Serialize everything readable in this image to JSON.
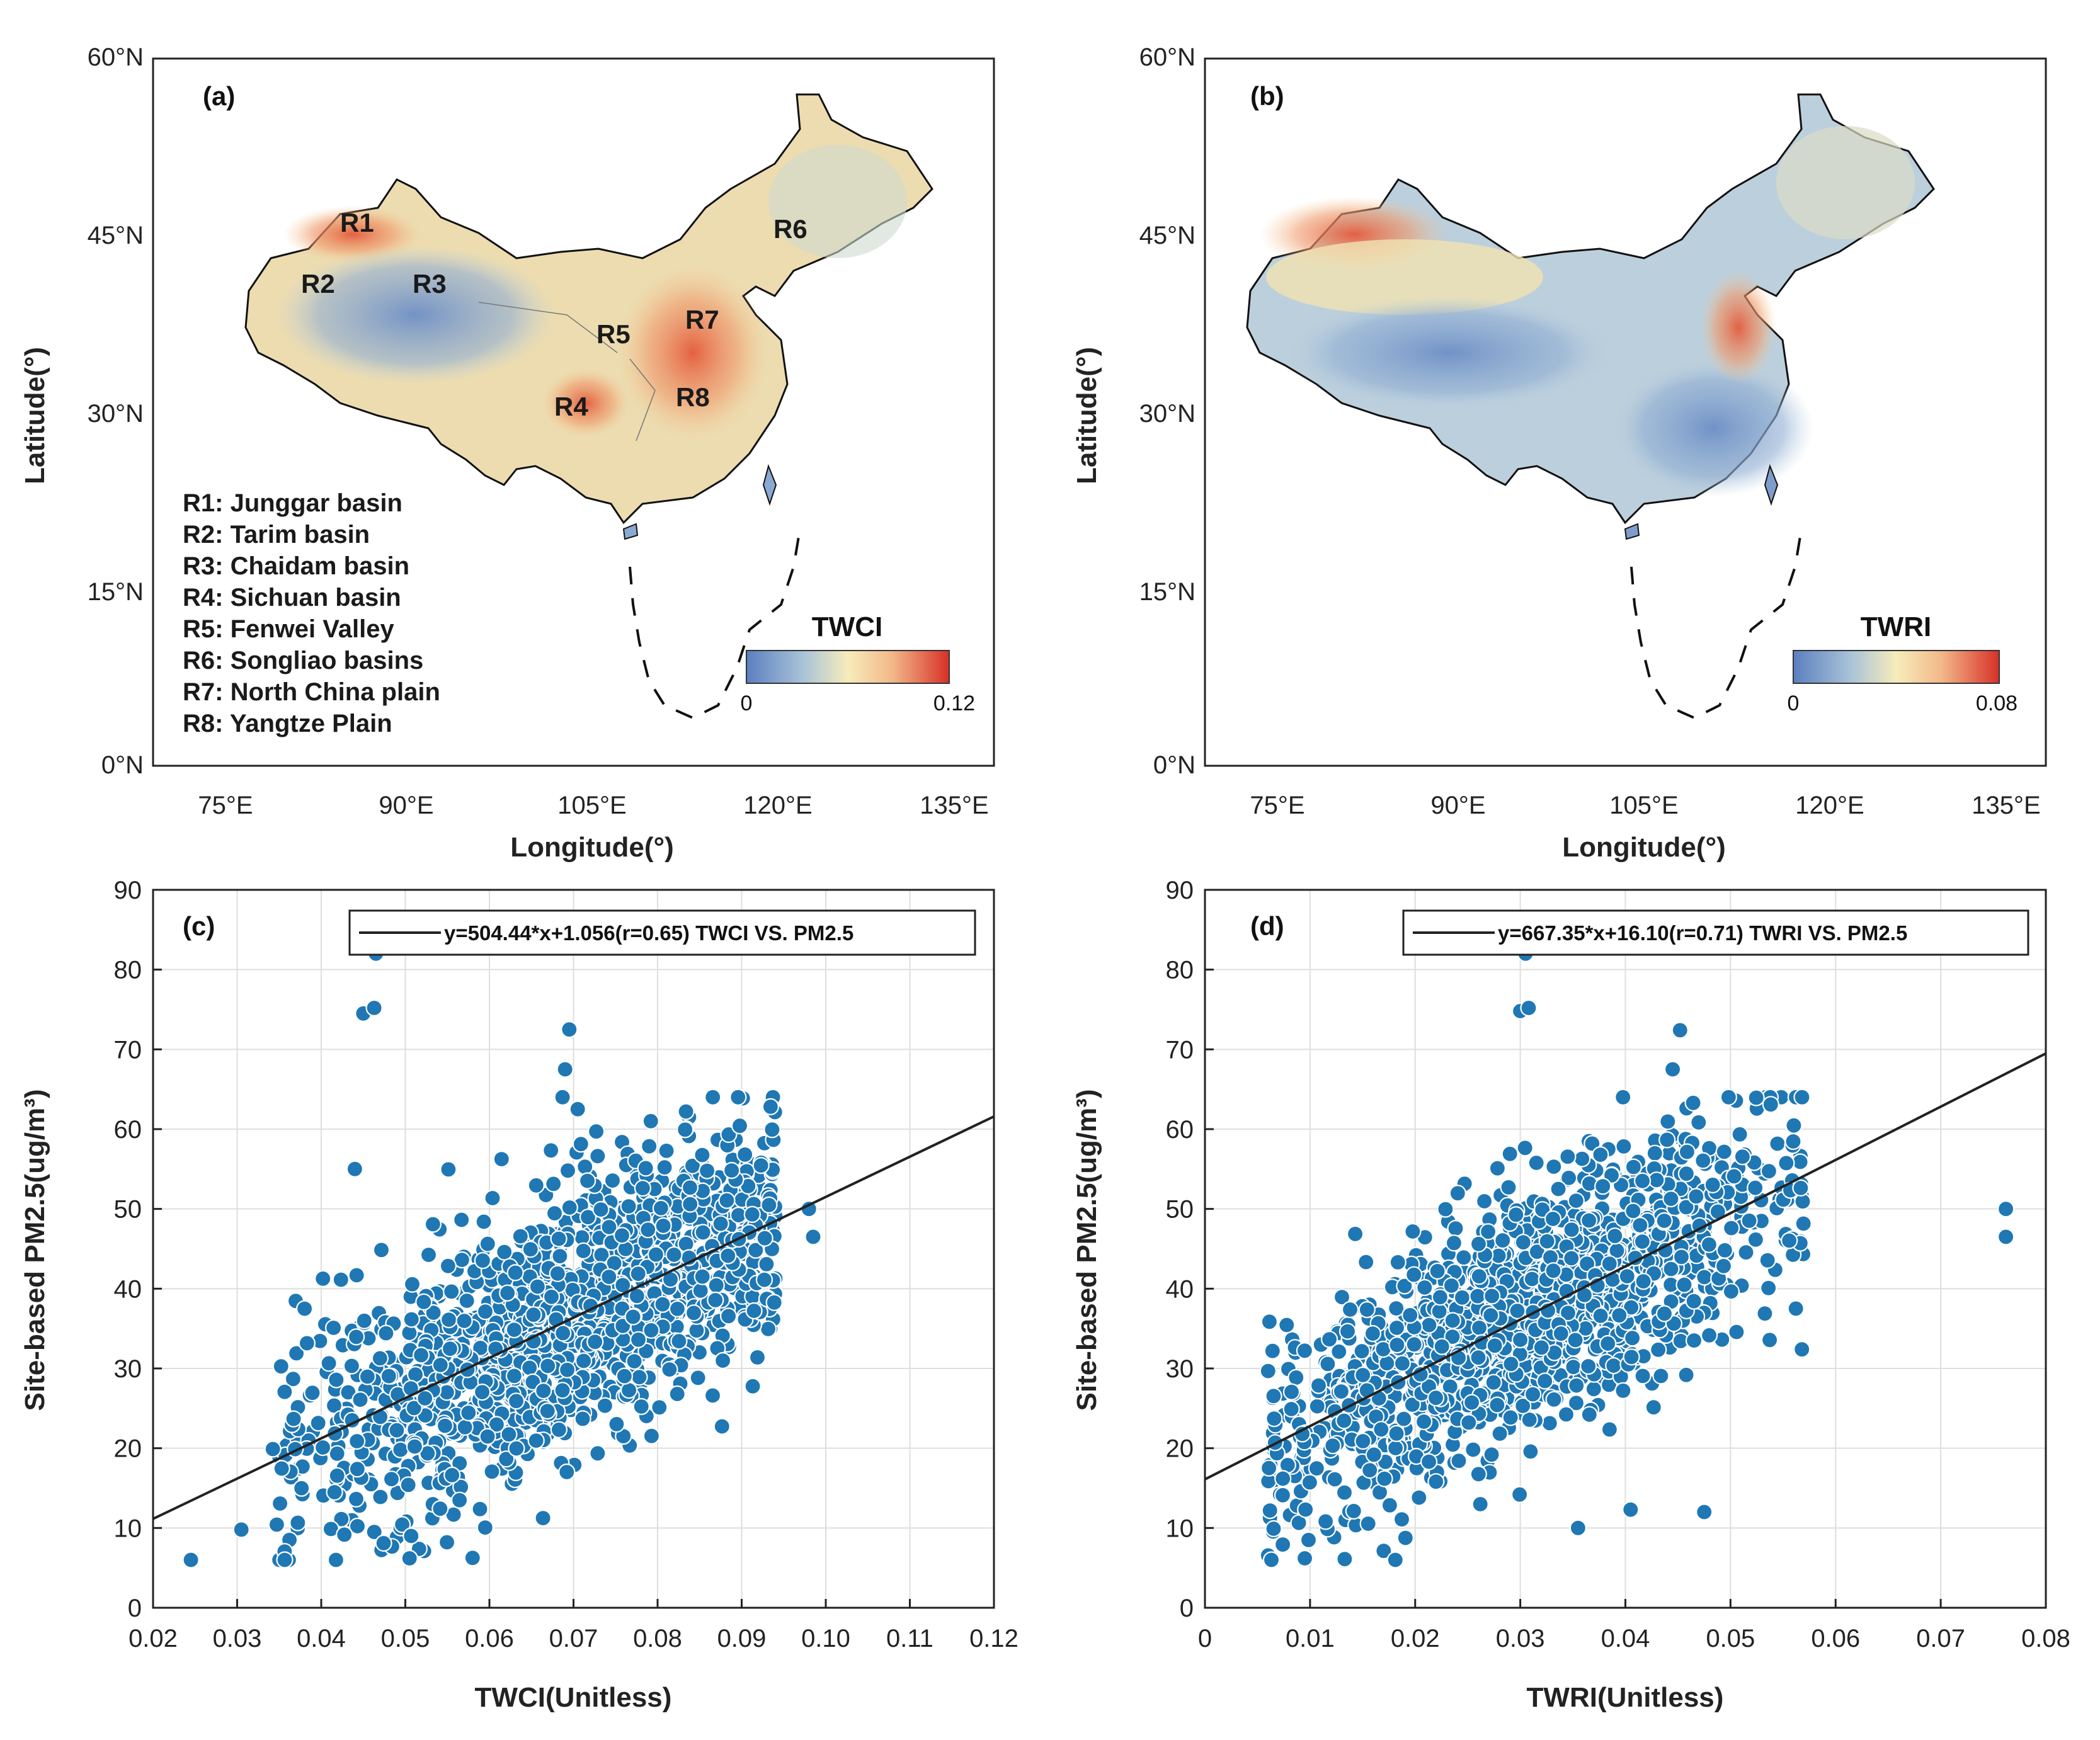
{
  "chart_data": [
    {
      "type": "map",
      "panel": "(a)",
      "xlabel": "Longitude(°)",
      "ylabel": "Latitude(°)",
      "x_ticks": [
        "75°E",
        "90°E",
        "105°E",
        "120°E",
        "135°E"
      ],
      "y_ticks": [
        "60°N",
        "45°N",
        "30°N",
        "15°N",
        "0°N"
      ],
      "colorbar": {
        "title": "TWCI",
        "min_label": "0",
        "max_label": "0.12",
        "min": 0,
        "max": 0.12
      },
      "region_labels": [
        "R1",
        "R2",
        "R3",
        "R4",
        "R5",
        "R6",
        "R7",
        "R8"
      ],
      "legend": [
        "R1: Junggar basin",
        "R2: Tarim basin",
        "R3: Chaidam basin",
        "R4: Sichuan basin",
        "R5: Fenwei Valley",
        "R6: Songliao basins",
        "R7: North China plain",
        "R8: Yangtze Plain"
      ]
    },
    {
      "type": "map",
      "panel": "(b)",
      "xlabel": "Longitude(°)",
      "ylabel": "Latitude(°)",
      "x_ticks": [
        "75°E",
        "90°E",
        "105°E",
        "120°E",
        "135°E"
      ],
      "y_ticks": [
        "60°N",
        "45°N",
        "30°N",
        "15°N",
        "0°N"
      ],
      "colorbar": {
        "title": "TWRI",
        "min_label": "0",
        "max_label": "0.08",
        "min": 0,
        "max": 0.08
      }
    },
    {
      "type": "scatter",
      "panel": "(c)",
      "xlabel": "TWCI(Unitless)",
      "ylabel": "Site-based PM2.5(ug/m³)",
      "x_ticks": [
        "0.02",
        "0.03",
        "0.04",
        "0.05",
        "0.06",
        "0.07",
        "0.08",
        "0.09",
        "0.10",
        "0.11",
        "0.12"
      ],
      "y_ticks": [
        "0",
        "10",
        "20",
        "30",
        "40",
        "50",
        "60",
        "70",
        "80",
        "90"
      ],
      "xlim": [
        0.02,
        0.12
      ],
      "ylim": [
        0,
        90
      ],
      "fit": {
        "slope": 504.44,
        "intercept": 1.056,
        "r": 0.65,
        "label": "y=504.44*x+1.056(r=0.65) TWCI VS. PM2.5"
      },
      "point_count": 1500,
      "x_center": 0.068,
      "x_spread": 0.015,
      "x_range": [
        0.034,
        0.094
      ],
      "residual_sd": 8.0,
      "outliers": [
        [
          0.0245,
          6.0
        ],
        [
          0.0305,
          9.8
        ],
        [
          0.044,
          55.0
        ],
        [
          0.045,
          74.5
        ],
        [
          0.0463,
          75.2
        ],
        [
          0.0465,
          82.0
        ],
        [
          0.069,
          67.5
        ],
        [
          0.0695,
          72.5
        ],
        [
          0.0705,
          62.5
        ],
        [
          0.0985,
          46.5
        ],
        [
          0.098,
          50.0
        ],
        [
          0.0505,
          6.2
        ],
        [
          0.0507,
          9.0
        ]
      ]
    },
    {
      "type": "scatter",
      "panel": "(d)",
      "xlabel": "TWRI(Unitless)",
      "ylabel": "Site-based PM2.5(ug/m³)",
      "x_ticks": [
        "0",
        "0.01",
        "0.02",
        "0.03",
        "0.04",
        "0.05",
        "0.06",
        "0.07",
        "0.08"
      ],
      "y_ticks": [
        "0",
        "10",
        "20",
        "30",
        "40",
        "50",
        "60",
        "70",
        "80",
        "90"
      ],
      "xlim": [
        0,
        0.08
      ],
      "ylim": [
        0,
        90
      ],
      "fit": {
        "slope": 667.35,
        "intercept": 16.1,
        "r": 0.71,
        "label": "y=667.35*x+16.10(r=0.71) TWRI VS. PM2.5"
      },
      "point_count": 1500,
      "x_center": 0.03,
      "x_spread": 0.012,
      "x_range": [
        0.006,
        0.057
      ],
      "residual_sd": 7.5,
      "outliers": [
        [
          0.0305,
          82.0
        ],
        [
          0.03,
          74.8
        ],
        [
          0.0308,
          75.2
        ],
        [
          0.0445,
          67.5
        ],
        [
          0.0452,
          72.4
        ],
        [
          0.0762,
          50.0
        ],
        [
          0.0762,
          46.5
        ],
        [
          0.0475,
          12.0
        ],
        [
          0.0405,
          12.3
        ],
        [
          0.0095,
          6.2
        ],
        [
          0.0133,
          6.1
        ],
        [
          0.0355,
          10.0
        ]
      ]
    }
  ]
}
